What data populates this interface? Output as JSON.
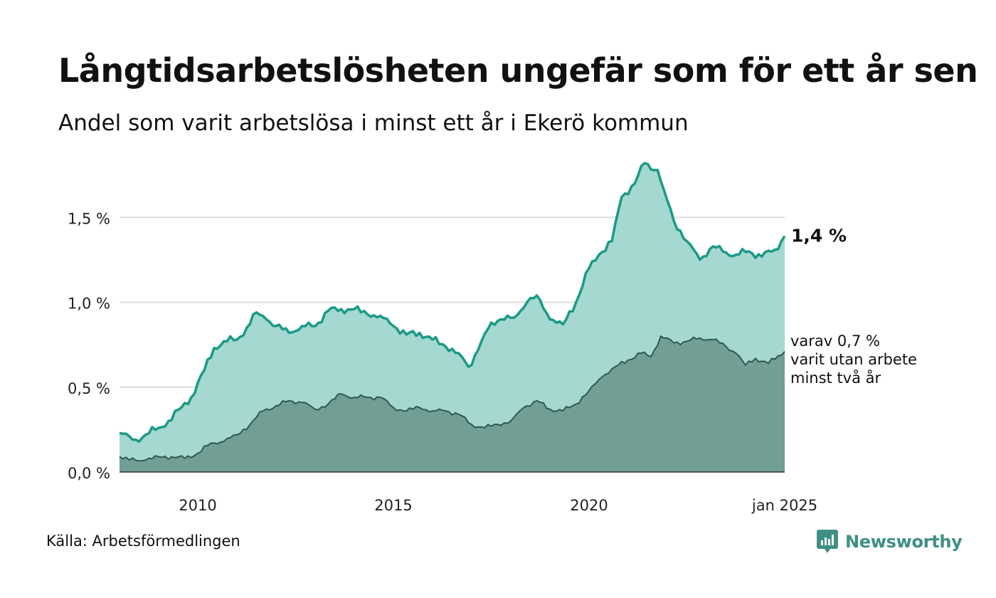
{
  "title": "Långtidsarbetslösheten ungefär som för ett år sen",
  "subtitle": "Andel som varit arbetslösa i minst ett år i Ekerö kommun",
  "source": "Källa: Arbetsförmedlingen",
  "brand": "Newsworthy",
  "colors": {
    "total_line": "#1a9a87",
    "total_fill": "#a5d8d1",
    "longterm_line": "#2d5a51",
    "longterm_fill": "#729f95",
    "grid": "#dddddd",
    "brand": "#3f8f84"
  },
  "chart_data": {
    "type": "area",
    "x_start": "2008-01",
    "x_end": "2025-01",
    "yticks": [
      0,
      0.5,
      1.0,
      1.5
    ],
    "ytick_labels": [
      "0,0 %",
      "0,5 %",
      "1,0 %",
      "1,5 %"
    ],
    "xticks": [
      "2010-01",
      "2015-01",
      "2020-01",
      "2025-01"
    ],
    "xtick_labels": [
      "2010",
      "2015",
      "2020",
      "jan 2025"
    ],
    "ylim": [
      0,
      1.85
    ],
    "grid": true,
    "keypoints": [
      {
        "name": "total",
        "points": [
          [
            "2008-01",
            0.23
          ],
          [
            "2008-04",
            0.21
          ],
          [
            "2008-06",
            0.19
          ],
          [
            "2008-09",
            0.22
          ],
          [
            "2009-01",
            0.26
          ],
          [
            "2009-04",
            0.3
          ],
          [
            "2009-08",
            0.38
          ],
          [
            "2009-11",
            0.44
          ],
          [
            "2010-03",
            0.6
          ],
          [
            "2010-06",
            0.73
          ],
          [
            "2010-09",
            0.77
          ],
          [
            "2011-01",
            0.78
          ],
          [
            "2011-04",
            0.85
          ],
          [
            "2011-07",
            0.94
          ],
          [
            "2011-10",
            0.9
          ],
          [
            "2012-01",
            0.86
          ],
          [
            "2012-05",
            0.82
          ],
          [
            "2012-09",
            0.86
          ],
          [
            "2013-01",
            0.86
          ],
          [
            "2013-05",
            0.95
          ],
          [
            "2013-09",
            0.96
          ],
          [
            "2014-01",
            0.96
          ],
          [
            "2014-05",
            0.93
          ],
          [
            "2014-09",
            0.92
          ],
          [
            "2015-01",
            0.86
          ],
          [
            "2015-05",
            0.81
          ],
          [
            "2015-09",
            0.82
          ],
          [
            "2016-01",
            0.78
          ],
          [
            "2016-05",
            0.74
          ],
          [
            "2016-09",
            0.7
          ],
          [
            "2016-12",
            0.62
          ],
          [
            "2017-03",
            0.72
          ],
          [
            "2017-07",
            0.88
          ],
          [
            "2017-10",
            0.9
          ],
          [
            "2018-02",
            0.91
          ],
          [
            "2018-06",
            1.0
          ],
          [
            "2018-09",
            1.04
          ],
          [
            "2019-01",
            0.9
          ],
          [
            "2019-05",
            0.87
          ],
          [
            "2019-09",
            1.0
          ],
          [
            "2020-01",
            1.2
          ],
          [
            "2020-04",
            1.28
          ],
          [
            "2020-08",
            1.36
          ],
          [
            "2020-11",
            1.62
          ],
          [
            "2021-03",
            1.7
          ],
          [
            "2021-06",
            1.82
          ],
          [
            "2021-10",
            1.78
          ],
          [
            "2021-12",
            1.66
          ],
          [
            "2022-03",
            1.48
          ],
          [
            "2022-07",
            1.36
          ],
          [
            "2022-11",
            1.25
          ],
          [
            "2023-03",
            1.33
          ],
          [
            "2023-06",
            1.3
          ],
          [
            "2023-10",
            1.28
          ],
          [
            "2024-02",
            1.3
          ],
          [
            "2024-06",
            1.27
          ],
          [
            "2024-10",
            1.31
          ],
          [
            "2025-01",
            1.39
          ]
        ]
      },
      {
        "name": "longterm",
        "points": [
          [
            "2008-01",
            0.09
          ],
          [
            "2008-04",
            0.07
          ],
          [
            "2008-09",
            0.07
          ],
          [
            "2009-01",
            0.09
          ],
          [
            "2009-05",
            0.09
          ],
          [
            "2009-09",
            0.08
          ],
          [
            "2010-01",
            0.11
          ],
          [
            "2010-05",
            0.17
          ],
          [
            "2010-09",
            0.18
          ],
          [
            "2011-01",
            0.22
          ],
          [
            "2011-05",
            0.28
          ],
          [
            "2011-09",
            0.36
          ],
          [
            "2012-01",
            0.39
          ],
          [
            "2012-05",
            0.42
          ],
          [
            "2012-09",
            0.41
          ],
          [
            "2013-01",
            0.37
          ],
          [
            "2013-05",
            0.4
          ],
          [
            "2013-09",
            0.46
          ],
          [
            "2014-01",
            0.44
          ],
          [
            "2014-05",
            0.44
          ],
          [
            "2014-09",
            0.44
          ],
          [
            "2015-01",
            0.38
          ],
          [
            "2015-05",
            0.36
          ],
          [
            "2015-09",
            0.38
          ],
          [
            "2016-01",
            0.36
          ],
          [
            "2016-05",
            0.36
          ],
          [
            "2016-09",
            0.34
          ],
          [
            "2017-01",
            0.28
          ],
          [
            "2017-05",
            0.26
          ],
          [
            "2017-09",
            0.28
          ],
          [
            "2018-01",
            0.3
          ],
          [
            "2018-05",
            0.38
          ],
          [
            "2018-09",
            0.42
          ],
          [
            "2019-01",
            0.37
          ],
          [
            "2019-05",
            0.36
          ],
          [
            "2019-09",
            0.4
          ],
          [
            "2020-01",
            0.48
          ],
          [
            "2020-05",
            0.56
          ],
          [
            "2020-09",
            0.62
          ],
          [
            "2021-01",
            0.66
          ],
          [
            "2021-05",
            0.7
          ],
          [
            "2021-08",
            0.68
          ],
          [
            "2021-11",
            0.8
          ],
          [
            "2022-03",
            0.76
          ],
          [
            "2022-07",
            0.77
          ],
          [
            "2022-11",
            0.79
          ],
          [
            "2023-03",
            0.78
          ],
          [
            "2023-07",
            0.74
          ],
          [
            "2023-10",
            0.7
          ],
          [
            "2024-01",
            0.63
          ],
          [
            "2024-04",
            0.67
          ],
          [
            "2024-08",
            0.64
          ],
          [
            "2025-01",
            0.71
          ]
        ]
      }
    ],
    "series": [
      {
        "name": "total",
        "value_label": "1,4 %",
        "last_value": 1.39
      },
      {
        "name": "longterm",
        "value_label_lines": [
          "varav 0,7 %",
          "varit utan arbete",
          "minst två år"
        ],
        "last_value": 0.71
      }
    ]
  }
}
